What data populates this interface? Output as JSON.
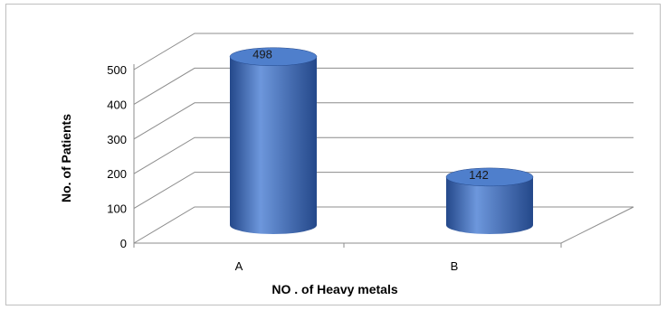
{
  "chart_data": {
    "type": "bar",
    "style": "3d-cylinder",
    "categories": [
      "A",
      "B"
    ],
    "values": [
      498,
      142
    ],
    "data_labels": [
      "498",
      "142"
    ],
    "xlabel": "NO . of Heavy metals",
    "ylabel": "No. of Patients",
    "ylim": [
      0,
      500
    ],
    "yticks": [
      "0",
      "100",
      "200",
      "300",
      "400",
      "500"
    ],
    "grid": true,
    "legend": "none",
    "colors": {
      "bar": "#3f6fbf",
      "bar_dark": "#24488a",
      "bar_light": "#6d97dc",
      "top": "#4f7fcc",
      "grid": "#8c8c8c"
    }
  }
}
